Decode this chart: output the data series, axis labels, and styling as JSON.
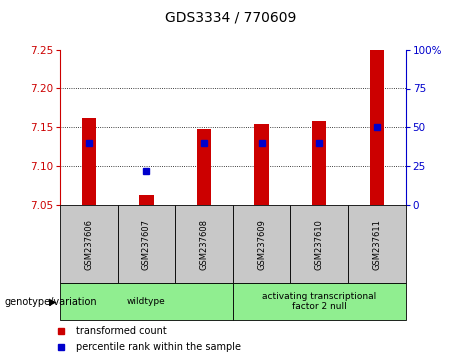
{
  "title": "GDS3334 / 770609",
  "samples": [
    "GSM237606",
    "GSM237607",
    "GSM237608",
    "GSM237609",
    "GSM237610",
    "GSM237611"
  ],
  "bar_tops": [
    7.162,
    7.063,
    7.148,
    7.155,
    7.158,
    7.25
  ],
  "bar_base": 7.05,
  "percentile_values": [
    40,
    22,
    40,
    40,
    40,
    50
  ],
  "ylim_left": [
    7.05,
    7.25
  ],
  "ylim_right": [
    0,
    100
  ],
  "yticks_left": [
    7.05,
    7.1,
    7.15,
    7.2,
    7.25
  ],
  "yticks_right": [
    0,
    25,
    50,
    75,
    100
  ],
  "bar_color": "#cc0000",
  "percentile_color": "#0000cc",
  "background_label": "#c8c8c8",
  "background_group": "#90ee90",
  "groups": [
    {
      "label": "wildtype",
      "start": 0,
      "end": 2
    },
    {
      "label": "activating transcriptional\nfactor 2 null",
      "start": 3,
      "end": 5
    }
  ],
  "legend_items": [
    "transformed count",
    "percentile rank within the sample"
  ],
  "genotype_label": "genotype/variation",
  "title_fontsize": 10,
  "tick_fontsize": 7.5,
  "sample_fontsize": 6,
  "group_fontsize": 6.5,
  "legend_fontsize": 7,
  "bar_width": 0.25
}
